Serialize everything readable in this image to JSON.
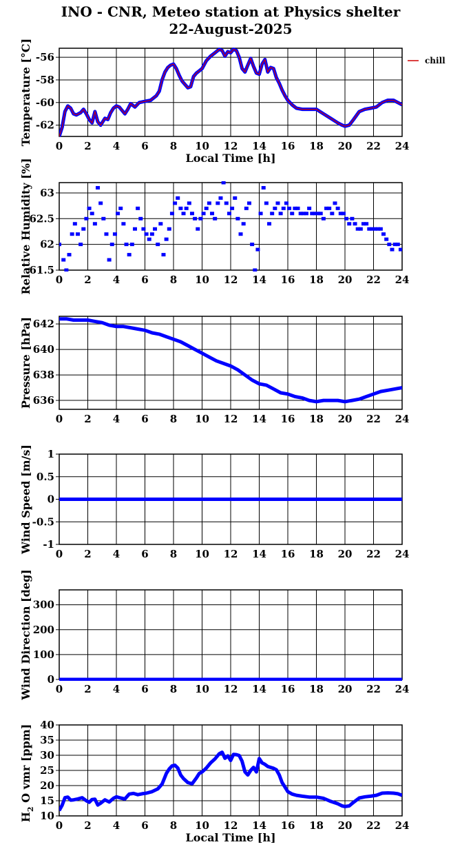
{
  "title": {
    "line1": "INO - CNR, Meteo station at Physics shelter",
    "line2": "22-August-2025"
  },
  "colors": {
    "data": "#0000ff",
    "chill": "#d00000",
    "axes": "#000000",
    "grid": "#000000"
  },
  "chart_data": [
    {
      "type": "line",
      "ylabel": "Temperature [°C]",
      "xlabel": "Local Time [h]",
      "xlim": [
        0,
        24
      ],
      "ylim": [
        -63,
        -55.2
      ],
      "yticks": [
        -62,
        -60,
        -58,
        -56
      ],
      "xticks": [
        0,
        2,
        4,
        6,
        8,
        10,
        12,
        14,
        16,
        18,
        20,
        22,
        24
      ],
      "grid": true,
      "legend": "right",
      "series": [
        {
          "name": "chill",
          "x": [
            0,
            0.2,
            0.4,
            0.6,
            0.8,
            1.0,
            1.2,
            1.5,
            1.7,
            1.9,
            2.1,
            2.3,
            2.5,
            2.7,
            2.9,
            3.2,
            3.4,
            3.6,
            3.8,
            4.0,
            4.2,
            4.4,
            4.6,
            4.8,
            5.0,
            5.3,
            5.6,
            6.0,
            6.4,
            6.8,
            7.0,
            7.2,
            7.4,
            7.6,
            7.8,
            8.0,
            8.2,
            8.4,
            8.6,
            8.8,
            9.0,
            9.2,
            9.4,
            9.6,
            9.8,
            10.0,
            10.3,
            10.6,
            10.9,
            11.2,
            11.4,
            11.6,
            11.8,
            12.0,
            12.2,
            12.4,
            12.6,
            12.8,
            13.0,
            13.2,
            13.4,
            13.6,
            13.8,
            14.0,
            14.2,
            14.4,
            14.6,
            14.8,
            15.0,
            15.2,
            15.4,
            15.6,
            15.8,
            16.0,
            16.3,
            16.6,
            17.0,
            17.5,
            18.0,
            18.5,
            19.0,
            19.5,
            19.8,
            20.0,
            20.3,
            20.6,
            21.0,
            21.4,
            21.8,
            22.2,
            22.6,
            23.0,
            23.4,
            23.7,
            24.0
          ],
          "y": [
            -63,
            -62.2,
            -60.8,
            -60.3,
            -60.5,
            -61.0,
            -61.1,
            -60.9,
            -60.6,
            -61.0,
            -61.5,
            -61.8,
            -60.8,
            -61.7,
            -62.0,
            -61.4,
            -61.5,
            -60.9,
            -60.5,
            -60.3,
            -60.4,
            -60.7,
            -61.0,
            -60.6,
            -60.1,
            -60.4,
            -60.0,
            -59.9,
            -59.8,
            -59.4,
            -59.0,
            -58.0,
            -57.3,
            -56.9,
            -56.7,
            -56.6,
            -57.0,
            -57.6,
            -58.1,
            -58.4,
            -58.7,
            -58.6,
            -57.7,
            -57.4,
            -57.2,
            -57.0,
            -56.3,
            -55.9,
            -55.6,
            -55.3,
            -55.4,
            -55.9,
            -55.5,
            -55.6,
            -55.3,
            -55.4,
            -56.0,
            -57.0,
            -57.3,
            -56.7,
            -56.1,
            -56.8,
            -57.4,
            -57.5,
            -56.6,
            -56.2,
            -57.3,
            -56.9,
            -57.0,
            -57.8,
            -58.3,
            -58.9,
            -59.4,
            -59.8,
            -60.2,
            -60.5,
            -60.6,
            -60.6,
            -60.6,
            -61.0,
            -61.4,
            -61.8,
            -62.0,
            -62.1,
            -62.0,
            -61.5,
            -60.8,
            -60.6,
            -60.5,
            -60.4,
            -60.0,
            -59.8,
            -59.8,
            -60.0,
            -60.2
          ]
        }
      ]
    },
    {
      "type": "scatter",
      "ylabel": "Relative Humidity [%]",
      "xlim": [
        0,
        24
      ],
      "ylim": [
        61.5,
        63.2
      ],
      "yticks": [
        61.5,
        62,
        62.5,
        63
      ],
      "yticklabels": [
        "61.5",
        "62",
        "62.5",
        "63"
      ],
      "xticks": [
        0,
        2,
        4,
        6,
        8,
        10,
        12,
        14,
        16,
        18,
        20,
        22,
        24
      ],
      "grid": true,
      "x": [
        0,
        0.3,
        0.5,
        0.7,
        0.9,
        1.1,
        1.3,
        1.5,
        1.7,
        1.9,
        2.1,
        2.3,
        2.5,
        2.7,
        2.9,
        3.1,
        3.3,
        3.5,
        3.7,
        3.9,
        4.1,
        4.3,
        4.5,
        4.7,
        4.9,
        5.1,
        5.3,
        5.5,
        5.7,
        5.9,
        6.1,
        6.3,
        6.5,
        6.7,
        6.9,
        7.1,
        7.3,
        7.5,
        7.7,
        7.9,
        8.1,
        8.3,
        8.5,
        8.7,
        8.9,
        9.1,
        9.3,
        9.5,
        9.7,
        9.9,
        10.1,
        10.3,
        10.5,
        10.7,
        10.9,
        11.1,
        11.3,
        11.5,
        11.7,
        11.9,
        12.1,
        12.3,
        12.5,
        12.7,
        12.9,
        13.1,
        13.3,
        13.5,
        13.7,
        13.9,
        14.1,
        14.3,
        14.5,
        14.7,
        14.9,
        15.1,
        15.3,
        15.5,
        15.7,
        15.9,
        16.1,
        16.3,
        16.5,
        16.7,
        16.9,
        17.1,
        17.3,
        17.5,
        17.7,
        17.9,
        18.1,
        18.3,
        18.5,
        18.7,
        18.9,
        19.1,
        19.3,
        19.5,
        19.7,
        19.9,
        20.1,
        20.3,
        20.5,
        20.7,
        20.9,
        21.1,
        21.3,
        21.5,
        21.7,
        21.9,
        22.1,
        22.3,
        22.5,
        22.7,
        22.9,
        23.1,
        23.3,
        23.5,
        23.7,
        23.9
      ],
      "y": [
        62.0,
        61.7,
        61.5,
        61.8,
        62.2,
        62.4,
        62.2,
        62.0,
        62.3,
        62.5,
        62.7,
        62.6,
        62.4,
        63.1,
        62.8,
        62.5,
        62.2,
        61.7,
        62.0,
        62.2,
        62.6,
        62.7,
        62.4,
        62.0,
        61.8,
        62.0,
        62.3,
        62.7,
        62.5,
        62.3,
        62.2,
        62.1,
        62.2,
        62.3,
        62.0,
        62.4,
        61.8,
        62.1,
        62.3,
        62.6,
        62.8,
        62.9,
        62.7,
        62.6,
        62.7,
        62.8,
        62.6,
        62.5,
        62.3,
        62.5,
        62.6,
        62.7,
        62.8,
        62.6,
        62.5,
        62.8,
        62.9,
        63.2,
        62.8,
        62.6,
        62.7,
        62.9,
        62.5,
        62.2,
        62.4,
        62.7,
        62.8,
        62.0,
        61.5,
        61.9,
        62.6,
        63.1,
        62.8,
        62.4,
        62.6,
        62.7,
        62.8,
        62.6,
        62.7,
        62.8,
        62.7,
        62.6,
        62.7,
        62.7,
        62.6,
        62.6,
        62.6,
        62.7,
        62.6,
        62.6,
        62.6,
        62.6,
        62.5,
        62.7,
        62.7,
        62.6,
        62.8,
        62.7,
        62.6,
        62.6,
        62.5,
        62.4,
        62.5,
        62.4,
        62.3,
        62.3,
        62.4,
        62.4,
        62.3,
        62.3,
        62.3,
        62.3,
        62.3,
        62.2,
        62.1,
        62.0,
        61.9,
        62.0,
        62.0,
        61.9
      ]
    },
    {
      "type": "line",
      "ylabel": "Pressure [hPa]",
      "xlim": [
        0,
        24
      ],
      "ylim": [
        635.3,
        642.6
      ],
      "yticks": [
        636,
        638,
        640,
        642
      ],
      "xticks": [
        0,
        2,
        4,
        6,
        8,
        10,
        12,
        14,
        16,
        18,
        20,
        22,
        24
      ],
      "grid": true,
      "x": [
        0,
        0.5,
        1.0,
        1.5,
        2.0,
        2.5,
        3.0,
        3.5,
        4.0,
        4.5,
        5.0,
        5.5,
        6.0,
        6.5,
        7.0,
        7.5,
        8.0,
        8.5,
        9.0,
        9.5,
        10.0,
        10.5,
        11.0,
        11.5,
        12.0,
        12.5,
        13.0,
        13.5,
        14.0,
        14.5,
        15.0,
        15.5,
        16.0,
        16.5,
        17.0,
        17.5,
        18.0,
        18.5,
        19.0,
        19.5,
        20.0,
        20.5,
        21.0,
        21.5,
        22.0,
        22.5,
        23.0,
        23.5,
        24.0
      ],
      "y": [
        642.4,
        642.4,
        642.3,
        642.3,
        642.3,
        642.2,
        642.1,
        641.9,
        641.8,
        641.8,
        641.7,
        641.6,
        641.5,
        641.3,
        641.2,
        641.0,
        640.8,
        640.6,
        640.3,
        640.0,
        639.7,
        639.4,
        639.1,
        638.9,
        638.7,
        638.4,
        638.0,
        637.6,
        637.3,
        637.2,
        636.9,
        636.6,
        636.5,
        636.3,
        636.2,
        636.0,
        635.9,
        636.0,
        636.0,
        636.0,
        635.9,
        636.0,
        636.1,
        636.3,
        636.5,
        636.7,
        636.8,
        636.9,
        637.0
      ]
    },
    {
      "type": "line",
      "ylabel": "Wind Speed [m/s]",
      "xlim": [
        0,
        24
      ],
      "ylim": [
        -1,
        1
      ],
      "yticks": [
        -1,
        -0.5,
        0,
        0.5,
        1
      ],
      "yticklabels": [
        "-1",
        "-0.5",
        "0",
        "0.5",
        "1"
      ],
      "xticks": [
        0,
        2,
        4,
        6,
        8,
        10,
        12,
        14,
        16,
        18,
        20,
        22,
        24
      ],
      "grid": true,
      "x": [
        0,
        24
      ],
      "y": [
        0,
        0
      ]
    },
    {
      "type": "line",
      "ylabel": "Wind Direction [deg]",
      "xlim": [
        0,
        24
      ],
      "ylim": [
        0,
        360
      ],
      "yticks": [
        0,
        100,
        200,
        300
      ],
      "xticks": [
        0,
        2,
        4,
        6,
        8,
        10,
        12,
        14,
        16,
        18,
        20,
        22,
        24
      ],
      "grid": true,
      "x": [
        0,
        24
      ],
      "y": [
        0,
        0
      ]
    },
    {
      "type": "line",
      "ylabel": "H2O vmr [ppm]",
      "ylabel_main": "H",
      "ylabel_sub": "2",
      "ylabel_rest": "O vmr [ppm]",
      "xlabel": "Local Time [h]",
      "xlim": [
        0,
        24
      ],
      "ylim": [
        10,
        40
      ],
      "yticks": [
        10,
        15,
        20,
        25,
        30,
        35,
        40
      ],
      "xticks": [
        0,
        2,
        4,
        6,
        8,
        10,
        12,
        14,
        16,
        18,
        20,
        22,
        24
      ],
      "grid": true,
      "x": [
        0,
        0.2,
        0.4,
        0.6,
        0.8,
        1.0,
        1.3,
        1.6,
        1.9,
        2.1,
        2.3,
        2.5,
        2.7,
        2.9,
        3.2,
        3.5,
        3.8,
        4.0,
        4.3,
        4.6,
        4.9,
        5.2,
        5.5,
        5.8,
        6.1,
        6.5,
        6.9,
        7.2,
        7.5,
        7.7,
        7.9,
        8.1,
        8.3,
        8.5,
        8.7,
        9.0,
        9.3,
        9.6,
        9.8,
        10.0,
        10.3,
        10.6,
        10.9,
        11.2,
        11.4,
        11.6,
        11.8,
        12.0,
        12.2,
        12.4,
        12.6,
        12.8,
        13.0,
        13.2,
        13.4,
        13.6,
        13.8,
        14.0,
        14.2,
        14.4,
        14.6,
        14.8,
        15.0,
        15.2,
        15.4,
        15.6,
        15.8,
        16.0,
        16.3,
        16.6,
        17.0,
        17.5,
        18.0,
        18.5,
        19.0,
        19.5,
        19.8,
        20.0,
        20.3,
        20.6,
        21.0,
        21.4,
        21.8,
        22.2,
        22.6,
        23.0,
        23.4,
        23.7,
        24.0
      ],
      "y": [
        11.8,
        13.5,
        16.0,
        16.2,
        15.2,
        15.3,
        15.6,
        16.0,
        15.0,
        14.5,
        15.4,
        15.5,
        13.6,
        14.2,
        15.3,
        14.6,
        15.8,
        16.3,
        15.9,
        15.6,
        17.2,
        17.4,
        17.0,
        17.3,
        17.5,
        18.0,
        18.9,
        20.5,
        24.0,
        25.5,
        26.5,
        26.7,
        25.8,
        23.5,
        22.3,
        21.0,
        20.6,
        22.5,
        24.0,
        24.5,
        25.8,
        27.5,
        28.8,
        30.5,
        31.0,
        29.0,
        29.8,
        28.3,
        30.3,
        30.2,
        29.9,
        28.0,
        24.5,
        23.5,
        25.0,
        26.0,
        24.5,
        28.9,
        27.5,
        27.0,
        26.3,
        26.0,
        25.7,
        25.2,
        23.5,
        21.0,
        19.5,
        18.0,
        17.2,
        16.8,
        16.5,
        16.2,
        16.2,
        15.8,
        14.8,
        14.0,
        13.3,
        13.1,
        13.3,
        14.5,
        15.9,
        16.3,
        16.5,
        16.8,
        17.5,
        17.6,
        17.5,
        17.3,
        16.8
      ]
    }
  ]
}
